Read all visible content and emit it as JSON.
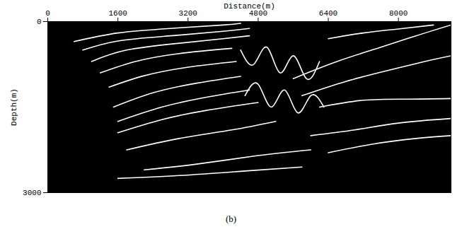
{
  "chart_data": {
    "type": "line",
    "x_label": "Distance(m)",
    "y_label": "Depth(m)",
    "caption": "(b)",
    "color": "#ffffff",
    "grid": false,
    "xlim": [
      0,
      9200
    ],
    "xticks": [
      0,
      1600,
      3200,
      4800,
      6400,
      8000
    ],
    "ylim": [
      0,
      3000
    ],
    "yticks": [
      0,
      3000
    ],
    "series": [
      {
        "x": [
          600,
          1600,
          2800,
          4000,
          4400
        ],
        "values": [
          350,
          200,
          120,
          60,
          30
        ]
      },
      {
        "x": [
          800,
          1600,
          2800,
          4000,
          4600
        ],
        "values": [
          500,
          340,
          250,
          170,
          120
        ]
      },
      {
        "x": [
          1000,
          1800,
          3000,
          4000,
          4600
        ],
        "values": [
          700,
          500,
          380,
          300,
          250
        ]
      },
      {
        "x": [
          1200,
          2000,
          3000,
          4200
        ],
        "values": [
          900,
          700,
          560,
          470
        ]
      },
      {
        "x": [
          1400,
          2200,
          3200,
          4300
        ],
        "values": [
          1150,
          950,
          800,
          700
        ]
      },
      {
        "x": [
          1500,
          2400,
          3400,
          4400
        ],
        "values": [
          1500,
          1250,
          1080,
          960
        ]
      },
      {
        "x": [
          1600,
          2600,
          3600,
          4600
        ],
        "values": [
          1750,
          1500,
          1330,
          1200
        ]
      },
      {
        "x": [
          1600,
          2600,
          3600,
          4800
        ],
        "values": [
          1950,
          1720,
          1560,
          1420
        ]
      },
      {
        "x": [
          1800,
          3000,
          4200,
          5200
        ],
        "values": [
          2250,
          2050,
          1900,
          1750
        ]
      },
      {
        "x": [
          2200,
          3400,
          4800,
          6000
        ],
        "values": [
          2600,
          2500,
          2350,
          2250
        ]
      },
      {
        "x": [
          1600,
          3000,
          4500,
          5800
        ],
        "values": [
          2750,
          2700,
          2620,
          2550
        ]
      },
      {
        "x": [
          5600,
          6600,
          7600,
          8400,
          9200
        ],
        "values": [
          1000,
          700,
          450,
          250,
          60
        ]
      },
      {
        "x": [
          5800,
          6800,
          7800,
          8600,
          9200
        ],
        "values": [
          1300,
          1050,
          850,
          700,
          600
        ]
      },
      {
        "x": [
          6200,
          7200,
          8200,
          9200
        ],
        "values": [
          1500,
          1380,
          1360,
          1350
        ]
      },
      {
        "x": [
          6000,
          7000,
          8000,
          9200
        ],
        "values": [
          2000,
          1900,
          1780,
          1700
        ]
      },
      {
        "x": [
          6400,
          7400,
          8400,
          9200
        ],
        "values": [
          2300,
          2150,
          2050,
          2000
        ]
      },
      {
        "x": [
          4400,
          4700,
          5000,
          5300,
          5600,
          5900,
          6200
        ],
        "values": [
          500,
          750,
          450,
          900,
          600,
          1000,
          700
        ]
      },
      {
        "x": [
          4500,
          4800,
          5100,
          5400,
          5700,
          6000,
          6300
        ],
        "values": [
          1300,
          1100,
          1500,
          1200,
          1600,
          1300,
          1500
        ]
      },
      {
        "x": [
          6400,
          7200,
          8000,
          8800
        ],
        "values": [
          300,
          200,
          130,
          60
        ]
      }
    ]
  }
}
